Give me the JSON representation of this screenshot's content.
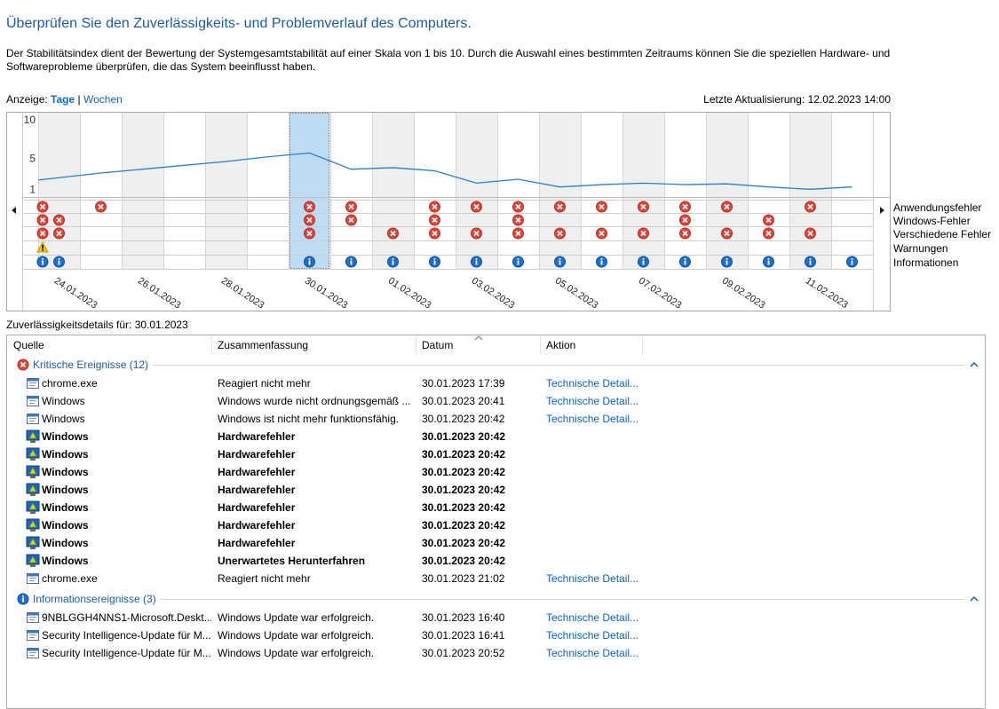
{
  "header": {
    "title": "Überprüfen Sie den Zuverlässigkeits- und Problemverlauf des Computers.",
    "description": "Der Stabilitätsindex dient der Bewertung der Systemgesamtstabilität auf einer Skala von 1 bis 10. Durch die Auswahl eines bestimmten Zeitraums können Sie die speziellen Hardware- und Softwareprobleme überprüfen, die das System beeinflusst haben."
  },
  "view": {
    "label": "Anzeige:",
    "options": [
      "Tage",
      "Wochen"
    ],
    "separator": "|",
    "selected": 0
  },
  "last_update": "Letzte Aktualisierung: 12.02.2023 14:00",
  "chart_data": {
    "type": "line",
    "categories": [
      null,
      "24.01.2023",
      null,
      "26.01.2023",
      null,
      "28.01.2023",
      null,
      "30.01.2023",
      null,
      "01.02.2023",
      null,
      "03.02.2023",
      null,
      "05.02.2023",
      null,
      "07.02.2023",
      null,
      "09.02.2023",
      null,
      "11.02.2023",
      null
    ],
    "values": [
      2.2,
      2.5,
      3.1,
      3.6,
      4.1,
      4.6,
      5.2,
      5.7,
      3.6,
      3.8,
      3.4,
      1.8,
      2.3,
      1.3,
      1.6,
      1.8,
      1.6,
      1.7,
      1.3,
      1.0,
      1.3
    ],
    "color": "#2b7fd0",
    "ylim": [
      0,
      10
    ],
    "yticks": [
      10,
      5,
      1
    ],
    "selected": 7,
    "event_rows": [
      {
        "name": "Anwendungsfehler",
        "icon": "error",
        "days": [
          0,
          2,
          7,
          8,
          10,
          11,
          12,
          13,
          14,
          15,
          16,
          17,
          19
        ]
      },
      {
        "name": "Windows-Fehler",
        "icon": "error",
        "days": [
          0,
          1,
          7,
          8,
          10,
          12,
          16,
          18
        ]
      },
      {
        "name": "Verschiedene Fehler",
        "icon": "error",
        "days": [
          0,
          1,
          7,
          9,
          10,
          11,
          12,
          13,
          14,
          15,
          16,
          17,
          18,
          19
        ]
      },
      {
        "name": "Warnungen",
        "icon": "warning",
        "days": [
          0
        ]
      },
      {
        "name": "Informationen",
        "icon": "info",
        "days": [
          0,
          1,
          7,
          8,
          9,
          10,
          11,
          12,
          13,
          14,
          15,
          16,
          17,
          18,
          19,
          20
        ]
      }
    ]
  },
  "details_label": "Zuverlässigkeitsdetails für: 30.01.2023",
  "table": {
    "columns": [
      "Quelle",
      "Zusammenfassung",
      "Datum",
      "Aktion"
    ],
    "groups": [
      {
        "title": "Kritische Ereignisse (12)",
        "icon": "error",
        "rows": [
          {
            "source": "chrome.exe",
            "summary": "Reagiert nicht mehr",
            "date": "30.01.2023 17:39",
            "action": "Technische Detail...",
            "bold": false
          },
          {
            "source": "Windows",
            "summary": "Windows wurde nicht ordnungsgemäß ...",
            "date": "30.01.2023 20:41",
            "action": "Technische Detail...",
            "bold": false
          },
          {
            "source": "Windows",
            "summary": "Windows ist nicht mehr funktionsfähig.",
            "date": "30.01.2023 20:42",
            "action": "Technische Detail...",
            "bold": false
          },
          {
            "source": "Windows",
            "summary": "Hardwarefehler",
            "date": "30.01.2023 20:42",
            "action": null,
            "bold": true
          },
          {
            "source": "Windows",
            "summary": "Hardwarefehler",
            "date": "30.01.2023 20:42",
            "action": null,
            "bold": true
          },
          {
            "source": "Windows",
            "summary": "Hardwarefehler",
            "date": "30.01.2023 20:42",
            "action": null,
            "bold": true
          },
          {
            "source": "Windows",
            "summary": "Hardwarefehler",
            "date": "30.01.2023 20:42",
            "action": null,
            "bold": true
          },
          {
            "source": "Windows",
            "summary": "Hardwarefehler",
            "date": "30.01.2023 20:42",
            "action": null,
            "bold": true
          },
          {
            "source": "Windows",
            "summary": "Hardwarefehler",
            "date": "30.01.2023 20:42",
            "action": null,
            "bold": true
          },
          {
            "source": "Windows",
            "summary": "Hardwarefehler",
            "date": "30.01.2023 20:42",
            "action": null,
            "bold": true
          },
          {
            "source": "Windows",
            "summary": "Unerwartetes Herunterfahren",
            "date": "30.01.2023 20:42",
            "action": null,
            "bold": true
          },
          {
            "source": "chrome.exe",
            "summary": "Reagiert nicht mehr",
            "date": "30.01.2023 21:02",
            "action": "Technische Detail...",
            "bold": false
          }
        ]
      },
      {
        "title": "Informationsereignisse (3)",
        "icon": "info",
        "rows": [
          {
            "source": "9NBLGGH4NNS1-Microsoft.Deskt...",
            "summary": "Windows Update war erfolgreich.",
            "date": "30.01.2023 16:40",
            "action": "Technische Detail...",
            "bold": false
          },
          {
            "source": "Security Intelligence-Update für M...",
            "summary": "Windows Update war erfolgreich.",
            "date": "30.01.2023 16:41",
            "action": "Technische Detail...",
            "bold": false
          },
          {
            "source": "Security Intelligence-Update für M...",
            "summary": "Windows Update war erfolgreich.",
            "date": "30.01.2023 20:52",
            "action": "Technische Detail...",
            "bold": false
          }
        ]
      }
    ]
  }
}
